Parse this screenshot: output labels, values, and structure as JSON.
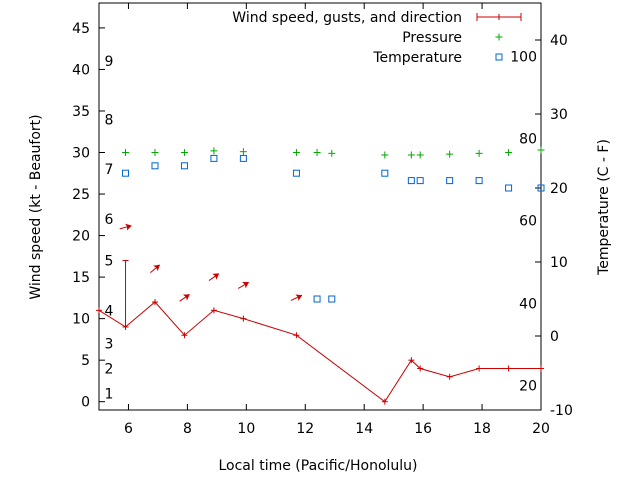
{
  "chart_data": {
    "type": "line",
    "title": "",
    "xlabel": "Local time (Pacific/Honolulu)",
    "ylabel_left": "Wind speed (kt - Beaufort)",
    "ylabel_right": "Temperature (C - F)",
    "xlim": [
      5,
      20
    ],
    "ylim_left": [
      -1,
      48
    ],
    "ylim_right": [
      -10,
      45
    ],
    "x_ticks": [
      6,
      8,
      10,
      12,
      14,
      16,
      18,
      20
    ],
    "y_left_ticks": [
      0,
      5,
      10,
      15,
      20,
      25,
      30,
      35,
      40,
      45
    ],
    "y_right_ticks": [
      -10,
      0,
      10,
      20,
      30,
      40
    ],
    "beaufort_labels": [
      {
        "text": "1",
        "wind": 1
      },
      {
        "text": "2",
        "wind": 4
      },
      {
        "text": "3",
        "wind": 7
      },
      {
        "text": "4",
        "wind": 11
      },
      {
        "text": "5",
        "wind": 17
      },
      {
        "text": "6",
        "wind": 22
      },
      {
        "text": "7",
        "wind": 28
      },
      {
        "text": "8",
        "wind": 34
      },
      {
        "text": "9",
        "wind": 41
      }
    ],
    "fahrenheit_labels": [
      {
        "text": "20",
        "temp_c": -6.7
      },
      {
        "text": "40",
        "temp_c": 4.4
      },
      {
        "text": "60",
        "temp_c": 15.6
      },
      {
        "text": "80",
        "temp_c": 26.7
      },
      {
        "text": "100",
        "temp_c": 37.8
      }
    ],
    "legend_position": "top-right",
    "series": [
      {
        "name": "Wind speed, gusts, and direction",
        "color": "#cc0000",
        "x": [
          5,
          5.9,
          6.9,
          7.9,
          8.9,
          9.9,
          11.7,
          14.7,
          15.6,
          15.9,
          16.9,
          17.9,
          18.9,
          20
        ],
        "values": [
          11,
          9,
          12,
          8,
          11,
          10,
          8,
          0,
          5,
          4,
          3,
          4,
          4,
          4
        ],
        "gusts": [
          {
            "x": 5.9,
            "from": 9,
            "to": 17
          }
        ],
        "direction_arrows": [
          {
            "x": 5.9,
            "wind": 21,
            "angle_deg": -15
          },
          {
            "x": 6.9,
            "wind": 16,
            "angle_deg": -40
          },
          {
            "x": 7.9,
            "wind": 12.5,
            "angle_deg": -35
          },
          {
            "x": 8.9,
            "wind": 15,
            "angle_deg": -35
          },
          {
            "x": 9.9,
            "wind": 14,
            "angle_deg": -30
          },
          {
            "x": 11.7,
            "wind": 12.5,
            "angle_deg": -25
          }
        ]
      },
      {
        "name": "Pressure",
        "color": "#00aa00",
        "marker": "plus",
        "x": [
          5.9,
          6.9,
          7.9,
          8.9,
          9.9,
          11.7,
          12.4,
          12.9,
          14.7,
          15.6,
          15.9,
          16.9,
          17.9,
          18.9,
          20
        ],
        "values": [
          30,
          30,
          30,
          30.2,
          30.1,
          30,
          30,
          29.9,
          29.7,
          29.7,
          29.7,
          29.8,
          29.9,
          30,
          30.3
        ]
      },
      {
        "name": "Temperature",
        "color": "#0066cc",
        "marker": "square",
        "x": [
          5.9,
          6.9,
          7.9,
          8.9,
          9.9,
          11.7,
          12.4,
          12.9,
          14.7,
          15.6,
          15.9,
          16.9,
          17.9,
          18.9,
          20
        ],
        "values": [
          22.0,
          23.0,
          23.0,
          24.0,
          24.0,
          22.0,
          5.0,
          5.0,
          22.0,
          21.0,
          21.0,
          21.0,
          21.0,
          20.0,
          20.0
        ]
      }
    ]
  }
}
